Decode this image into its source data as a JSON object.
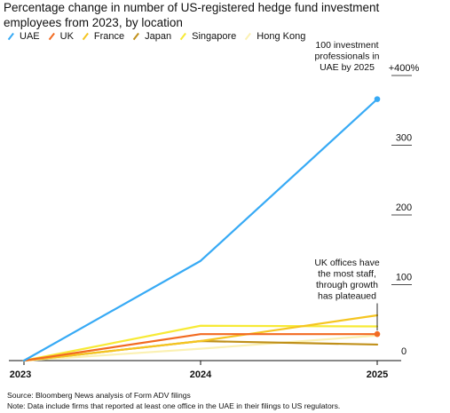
{
  "title": "Percentage change in number of US-registered hedge fund investment employees from 2023, by location",
  "footer": {
    "source": "Source: Bloomberg News analysis of Form ADV filings",
    "note": "Note: Data include firms that reported at least one office in the UAE in their filings to US regulators."
  },
  "chart_data": {
    "type": "line",
    "x": [
      "2023",
      "2024",
      "2025"
    ],
    "ylim": [
      0,
      400
    ],
    "yticks": [
      {
        "value": 0,
        "label": "0"
      },
      {
        "value": 100,
        "label": "100"
      },
      {
        "value": 200,
        "label": "200"
      },
      {
        "value": 300,
        "label": "300"
      },
      {
        "value": 400,
        "label": "+400%"
      }
    ],
    "series": [
      {
        "name": "UAE",
        "color": "#37aaf5",
        "values": [
          0,
          143,
          375
        ],
        "end_marker": true
      },
      {
        "name": "UK",
        "color": "#f26b22",
        "values": [
          0,
          38,
          38
        ],
        "end_marker": true
      },
      {
        "name": "France",
        "color": "#f5c521",
        "values": [
          0,
          28,
          65
        ],
        "end_marker": false
      },
      {
        "name": "Japan",
        "color": "#c0901a",
        "values": [
          0,
          28,
          23
        ],
        "end_marker": false
      },
      {
        "name": "Singapore",
        "color": "#f7ea36",
        "values": [
          0,
          50,
          49
        ],
        "end_marker": false
      },
      {
        "name": "Hong Kong",
        "color": "#fbf1b3",
        "values": [
          0,
          17,
          36
        ],
        "end_marker": false
      }
    ],
    "annotations": [
      {
        "series": "UAE",
        "lines": [
          "100 investment",
          "professionals in",
          "UAE by 2025"
        ]
      },
      {
        "series": "UK",
        "lines": [
          "UK offices have",
          "the most staff,",
          "through growth",
          "has plateaued"
        ]
      }
    ]
  }
}
